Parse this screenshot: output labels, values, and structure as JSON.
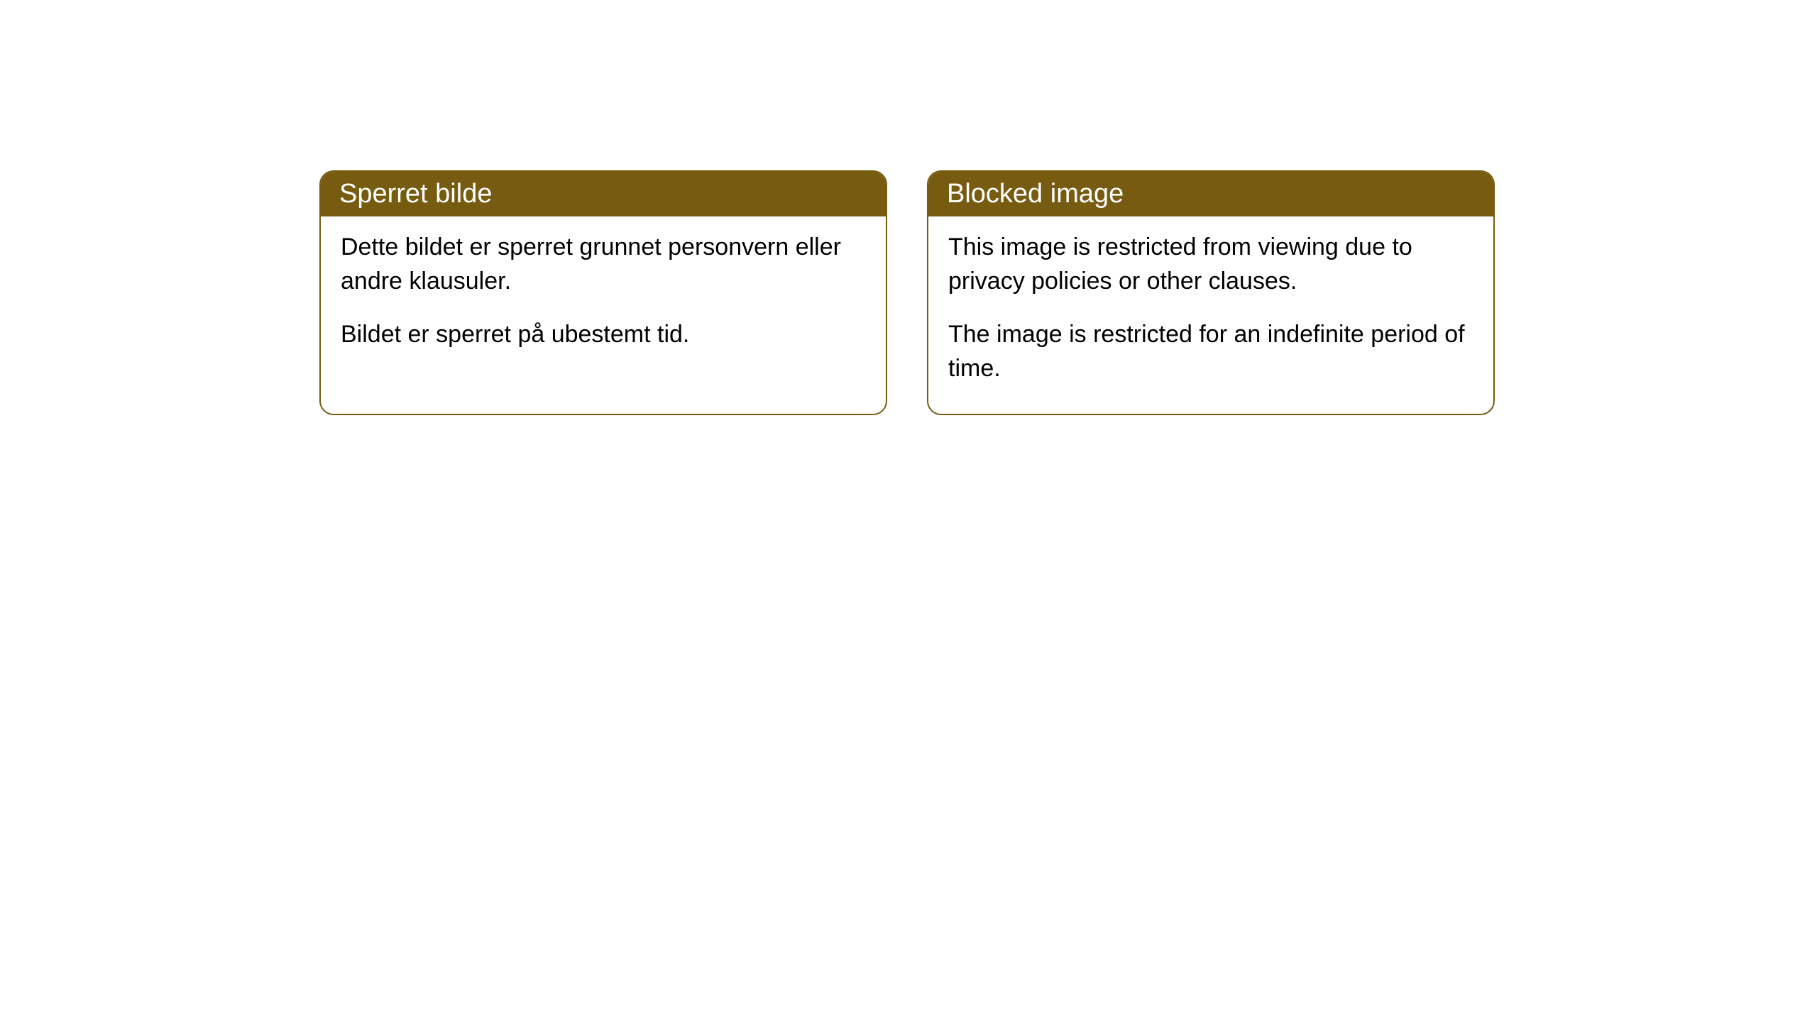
{
  "cards": [
    {
      "title": "Sperret bilde",
      "paragraph1": "Dette bildet er sperret grunnet personvern eller andre klausuler.",
      "paragraph2": "Bildet er sperret på ubestemt tid."
    },
    {
      "title": "Blocked image",
      "paragraph1": "This image is restricted from viewing due to privacy policies or other clauses.",
      "paragraph2": "The image is restricted for an indefinite period of time."
    }
  ],
  "style": {
    "header_bg_color": "#765b10",
    "header_text_color": "#ffffff",
    "border_color": "#765b10",
    "body_bg_color": "#ffffff",
    "body_text_color": "#000000",
    "border_radius": 20,
    "header_fontsize": 38,
    "body_fontsize": 34
  }
}
